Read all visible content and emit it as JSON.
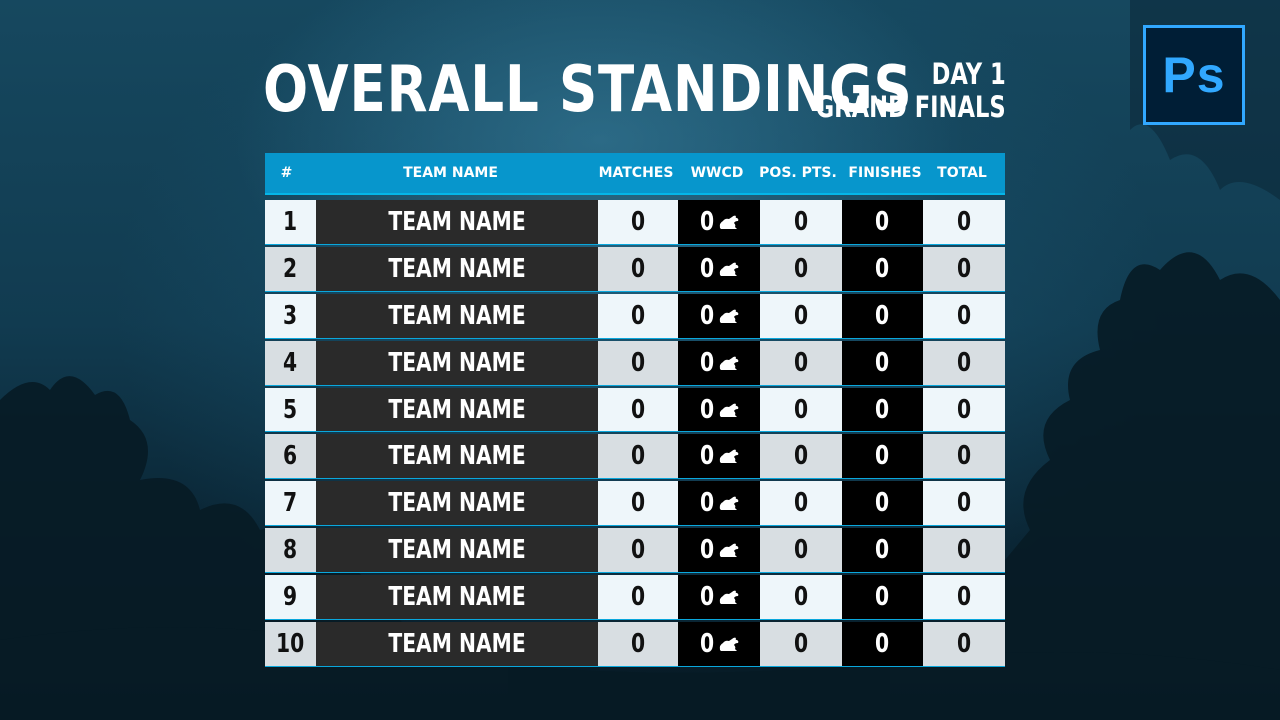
{
  "header": {
    "title": "OVERALL STANDINGS",
    "day": "DAY 1",
    "event": "GRAND FINALS"
  },
  "logo": {
    "text": "Ps",
    "icon": "photoshop-logo-icon",
    "color": "#31a8ff"
  },
  "table": {
    "columns": {
      "rank": "#",
      "team": "TEAM NAME",
      "matches": "MATCHES",
      "wwcd": "WWCD",
      "pos_pts": "POS. PTS.",
      "finishes": "FINISHES",
      "total": "TOTAL"
    },
    "wwcd_icon": "chicken-icon",
    "rows": [
      {
        "rank": "1",
        "team": "TEAM NAME",
        "matches": "0",
        "wwcd": "0",
        "pos_pts": "0",
        "finishes": "0",
        "total": "0"
      },
      {
        "rank": "2",
        "team": "TEAM NAME",
        "matches": "0",
        "wwcd": "0",
        "pos_pts": "0",
        "finishes": "0",
        "total": "0"
      },
      {
        "rank": "3",
        "team": "TEAM NAME",
        "matches": "0",
        "wwcd": "0",
        "pos_pts": "0",
        "finishes": "0",
        "total": "0"
      },
      {
        "rank": "4",
        "team": "TEAM NAME",
        "matches": "0",
        "wwcd": "0",
        "pos_pts": "0",
        "finishes": "0",
        "total": "0"
      },
      {
        "rank": "5",
        "team": "TEAM NAME",
        "matches": "0",
        "wwcd": "0",
        "pos_pts": "0",
        "finishes": "0",
        "total": "0"
      },
      {
        "rank": "6",
        "team": "TEAM NAME",
        "matches": "0",
        "wwcd": "0",
        "pos_pts": "0",
        "finishes": "0",
        "total": "0"
      },
      {
        "rank": "7",
        "team": "TEAM NAME",
        "matches": "0",
        "wwcd": "0",
        "pos_pts": "0",
        "finishes": "0",
        "total": "0"
      },
      {
        "rank": "8",
        "team": "TEAM NAME",
        "matches": "0",
        "wwcd": "0",
        "pos_pts": "0",
        "finishes": "0",
        "total": "0"
      },
      {
        "rank": "9",
        "team": "TEAM NAME",
        "matches": "0",
        "wwcd": "0",
        "pos_pts": "0",
        "finishes": "0",
        "total": "0"
      },
      {
        "rank": "10",
        "team": "TEAM NAME",
        "matches": "0",
        "wwcd": "0",
        "pos_pts": "0",
        "finishes": "0",
        "total": "0"
      }
    ]
  }
}
